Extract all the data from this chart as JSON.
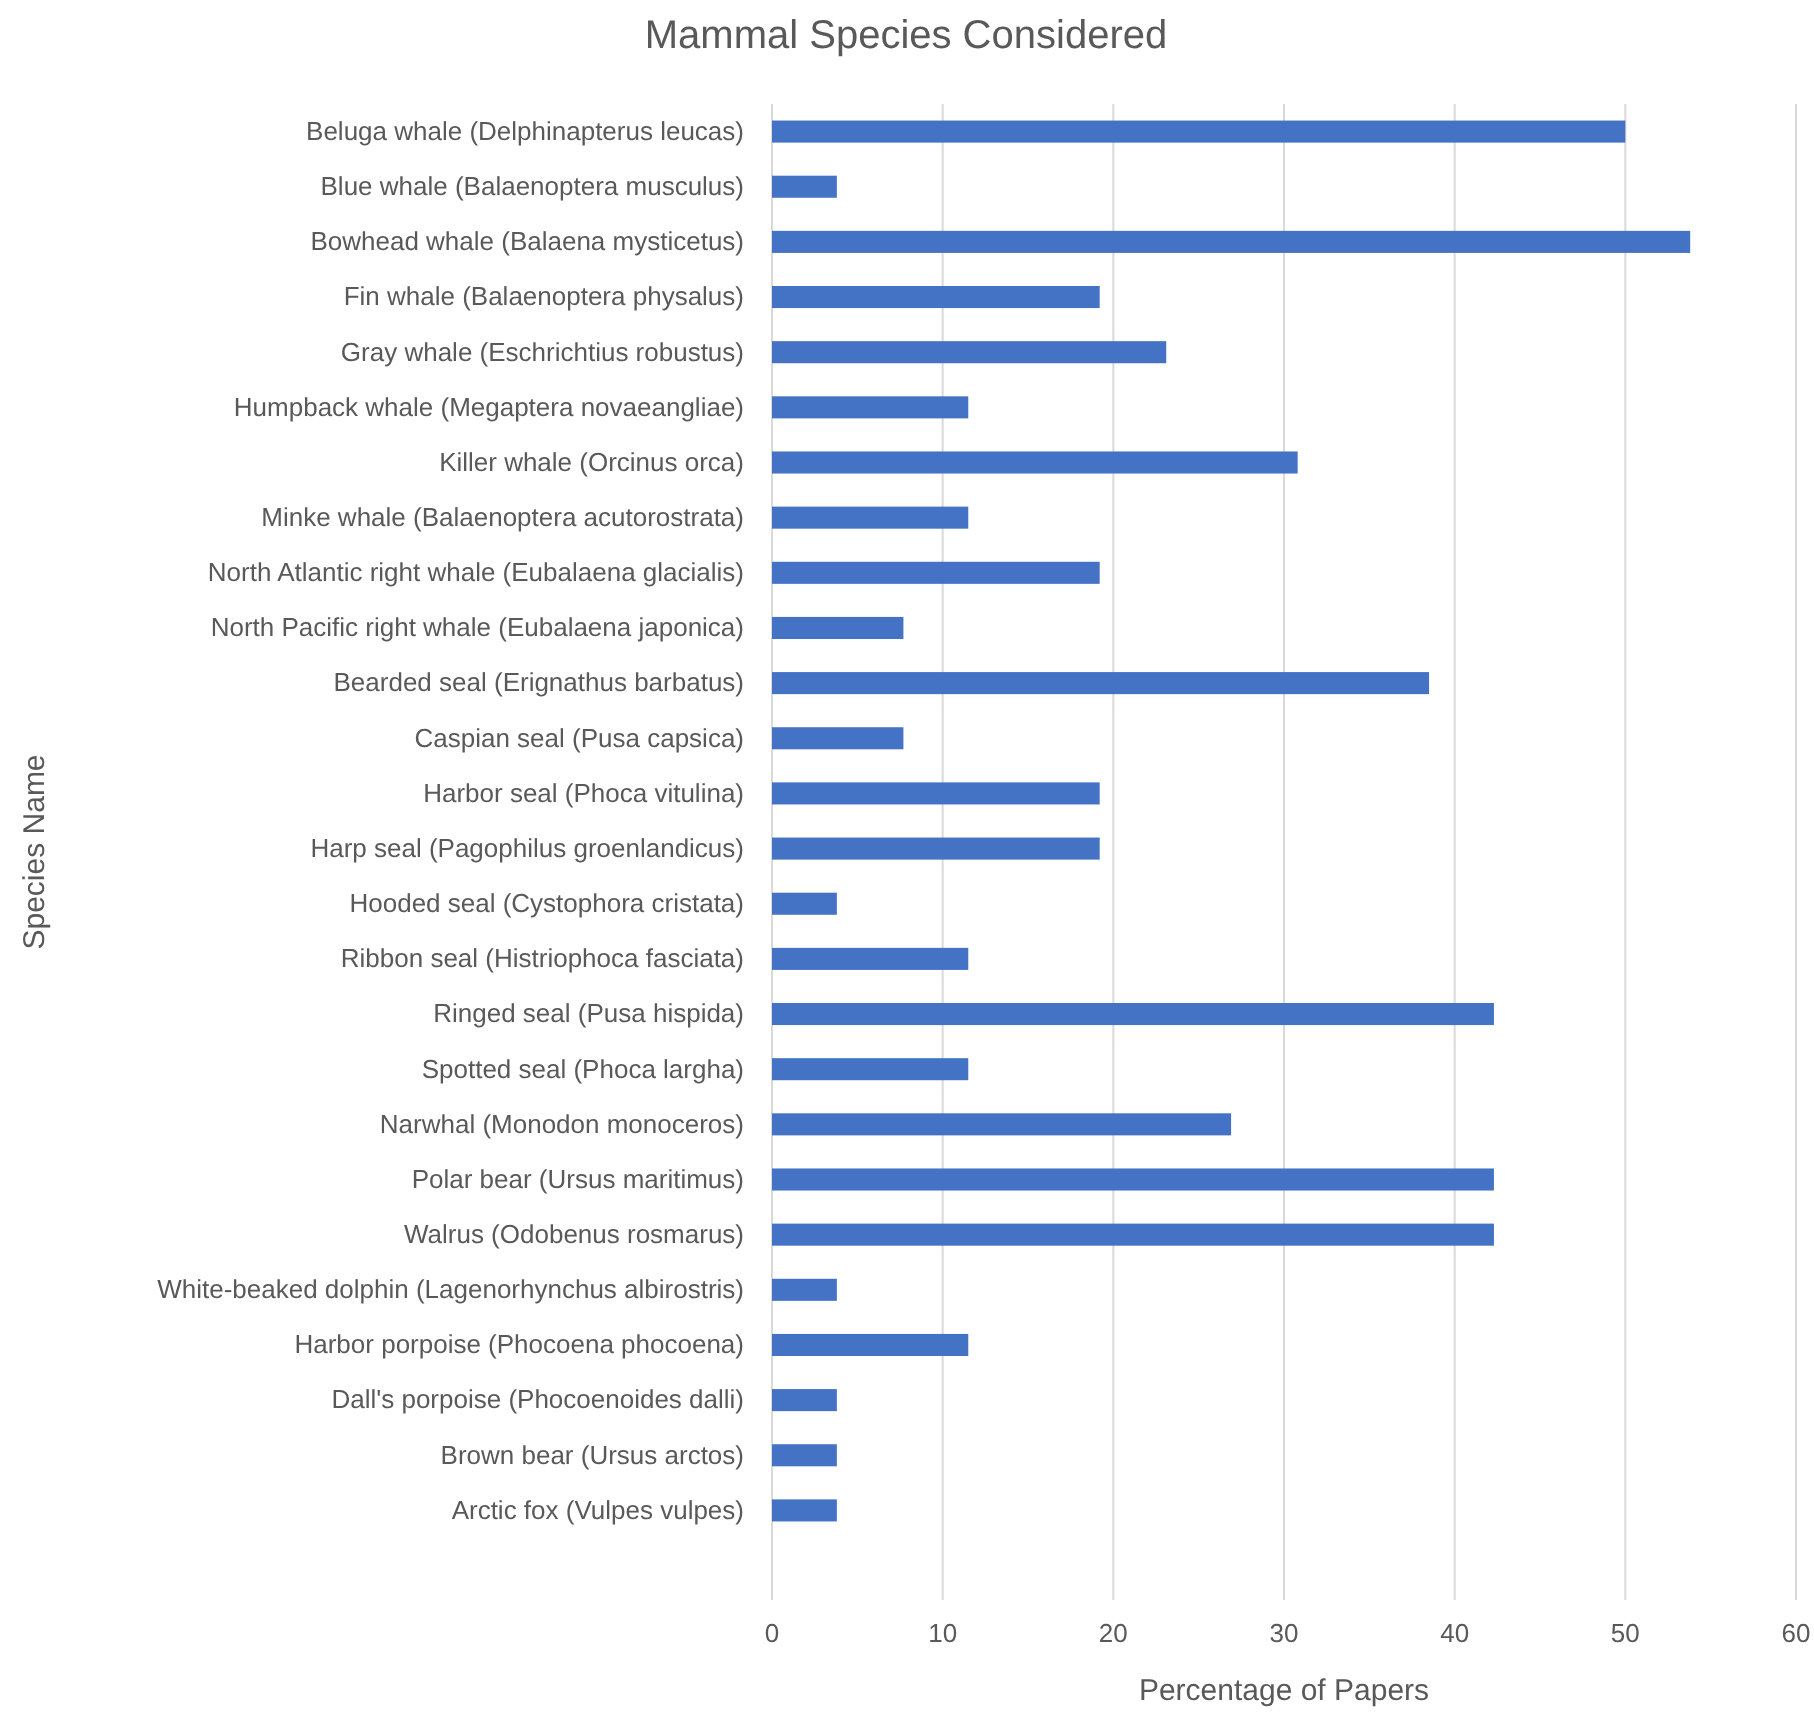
{
  "chart_data": {
    "type": "bar",
    "orientation": "horizontal",
    "title": "Mammal Species Considered",
    "xlabel": "Percentage of Papers",
    "ylabel": "Species Name",
    "categories": [
      "Beluga whale (Delphinapterus leucas)",
      "Blue whale (Balaenoptera musculus)",
      "Bowhead whale (Balaena mysticetus)",
      "Fin whale (Balaenoptera physalus)",
      "Gray whale (Eschrichtius robustus)",
      "Humpback whale (Megaptera novaeangliae)",
      "Killer whale (Orcinus orca)",
      "Minke whale (Balaenoptera acutorostrata)",
      "North Atlantic right whale (Eubalaena glacialis)",
      "North Pacific right whale (Eubalaena japonica)",
      "Bearded seal (Erignathus barbatus)",
      "Caspian seal (Pusa capsica)",
      "Harbor seal (Phoca vitulina)",
      "Harp seal (Pagophilus groenlandicus)",
      "Hooded seal (Cystophora cristata)",
      "Ribbon seal (Histriophoca fasciata)",
      "Ringed seal (Pusa hispida)",
      "Spotted seal (Phoca largha)",
      "Narwhal (Monodon monoceros)",
      "Polar bear (Ursus maritimus)",
      "Walrus (Odobenus rosmarus)",
      "White-beaked dolphin (Lagenorhynchus albirostris)",
      "Harbor porpoise (Phocoena phocoena)",
      "Dall's porpoise (Phocoenoides dalli)",
      "Brown bear (Ursus arctos)",
      "Arctic fox (Vulpes vulpes)"
    ],
    "values": [
      50,
      3.8,
      53.8,
      19.2,
      23.1,
      11.5,
      30.8,
      11.5,
      19.2,
      7.7,
      38.5,
      7.7,
      19.2,
      19.2,
      3.8,
      11.5,
      42.3,
      11.5,
      26.9,
      42.3,
      42.3,
      3.8,
      11.5,
      3.8,
      3.8,
      3.8
    ],
    "color": "#4472c4",
    "xlim": [
      0,
      60
    ],
    "xticks": [
      0,
      10,
      20,
      30,
      40,
      50,
      60
    ],
    "grid": "x"
  }
}
